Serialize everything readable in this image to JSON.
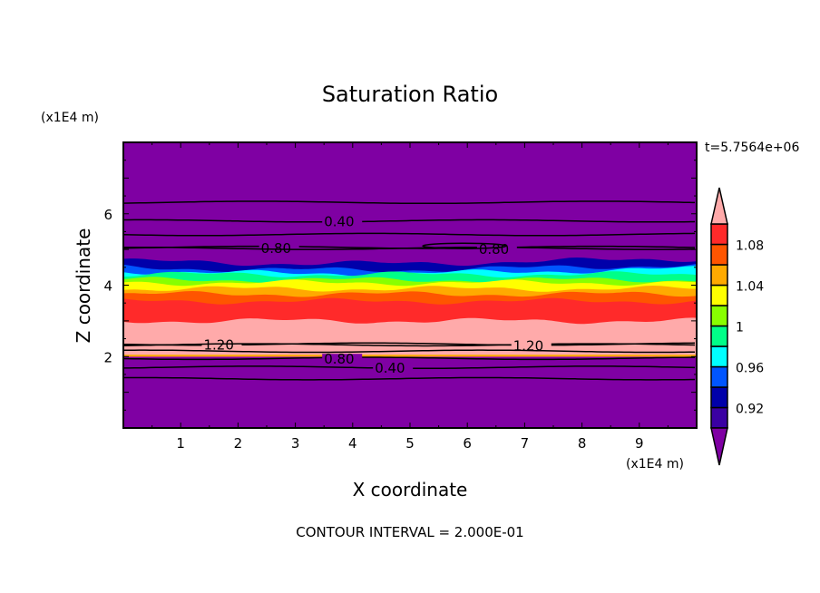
{
  "chart_data": {
    "type": "heatmap",
    "title": "Saturation Ratio",
    "xlabel": "X coordinate",
    "ylabel": "Z coordinate",
    "x_unit_label": "(x1E4 m)",
    "y_unit_label": "(x1E4 m)",
    "time_label": "t=5.7564e+06",
    "footer": "CONTOUR INTERVAL = 2.000E-01",
    "xlim": [
      0,
      10
    ],
    "ylim": [
      0,
      8
    ],
    "x_ticks": [
      "1",
      "2",
      "3",
      "4",
      "5",
      "6",
      "7",
      "8",
      "9"
    ],
    "y_ticks": [
      "2",
      "4",
      "6"
    ],
    "colorbar": {
      "levels": [
        0.9,
        0.92,
        0.94,
        0.96,
        0.98,
        1.0,
        1.02,
        1.04,
        1.06,
        1.08,
        1.1
      ],
      "tick_labels": [
        "0.92",
        "0.96",
        "1",
        "1.04",
        "1.08"
      ],
      "tick_values": [
        0.92,
        0.96,
        1.0,
        1.04,
        1.08
      ],
      "colors": [
        "#3a00a3",
        "#0000aa",
        "#0055ff",
        "#00ffff",
        "#00ff88",
        "#88ff00",
        "#ffff00",
        "#ffaa00",
        "#ff5500",
        "#ff2a2a"
      ],
      "under_color": "#7f00a3",
      "over_color": "#ffaaaa"
    },
    "background_color": "#7f00a3",
    "bands": [
      {
        "color": "#0000aa",
        "z_top": 4.68
      },
      {
        "color": "#0055ff",
        "z_top": 4.5
      },
      {
        "color": "#00ffff",
        "z_top": 4.4
      },
      {
        "color": "#00ff88",
        "z_top": 4.3
      },
      {
        "color": "#88ff00",
        "z_top": 4.15
      },
      {
        "color": "#ffff00",
        "z_top": 4.07
      },
      {
        "color": "#ffaa00",
        "z_top": 3.9
      },
      {
        "color": "#ff5500",
        "z_top": 3.75
      },
      {
        "color": "#ff2a2a",
        "z_top": 3.55
      },
      {
        "color": "#ffaaaa",
        "z_top": 3.0
      }
    ],
    "colored_region_bottom_z": 2.0,
    "contours": [
      {
        "z": 6.32,
        "label": ""
      },
      {
        "z": 5.8,
        "label": "0.40",
        "label_x": 3.5
      },
      {
        "z": 5.42,
        "label": ""
      },
      {
        "z": 5.06,
        "label": "0.80",
        "label_x": 2.4
      },
      {
        "z": 5.03,
        "label": "0.80",
        "label_x": 6.2
      },
      {
        "z": 2.35,
        "label": "1.20",
        "label_x": 1.4
      },
      {
        "z": 2.33,
        "label": "1.20",
        "label_x": 6.8
      },
      {
        "z": 2.15,
        "label": ""
      },
      {
        "z": 1.95,
        "label": "0.80",
        "label_x": 3.5
      },
      {
        "z": 1.7,
        "label": "0.40",
        "label_x": 3.5
      },
      {
        "z": 1.38,
        "label": ""
      }
    ]
  }
}
